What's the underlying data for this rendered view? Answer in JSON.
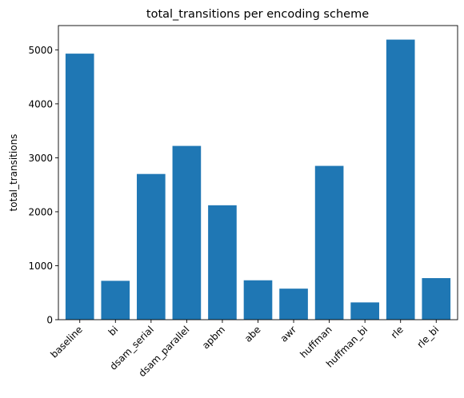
{
  "chart_data": {
    "type": "bar",
    "title": "total_transitions per encoding scheme",
    "xlabel": "",
    "ylabel": "total_transitions",
    "categories": [
      "baseline",
      "bi",
      "dsam_serial",
      "dsam_parallel",
      "apbm",
      "abe",
      "awr",
      "huffman",
      "huffman_bi",
      "rle",
      "rle_bi"
    ],
    "values": [
      4930,
      720,
      2700,
      3220,
      2120,
      730,
      575,
      2850,
      320,
      5190,
      770
    ],
    "ylim": [
      0,
      5450
    ],
    "yticks": [
      0,
      1000,
      2000,
      3000,
      4000,
      5000
    ],
    "grid": false,
    "legend": "none",
    "bar_color": "#1f77b4"
  }
}
